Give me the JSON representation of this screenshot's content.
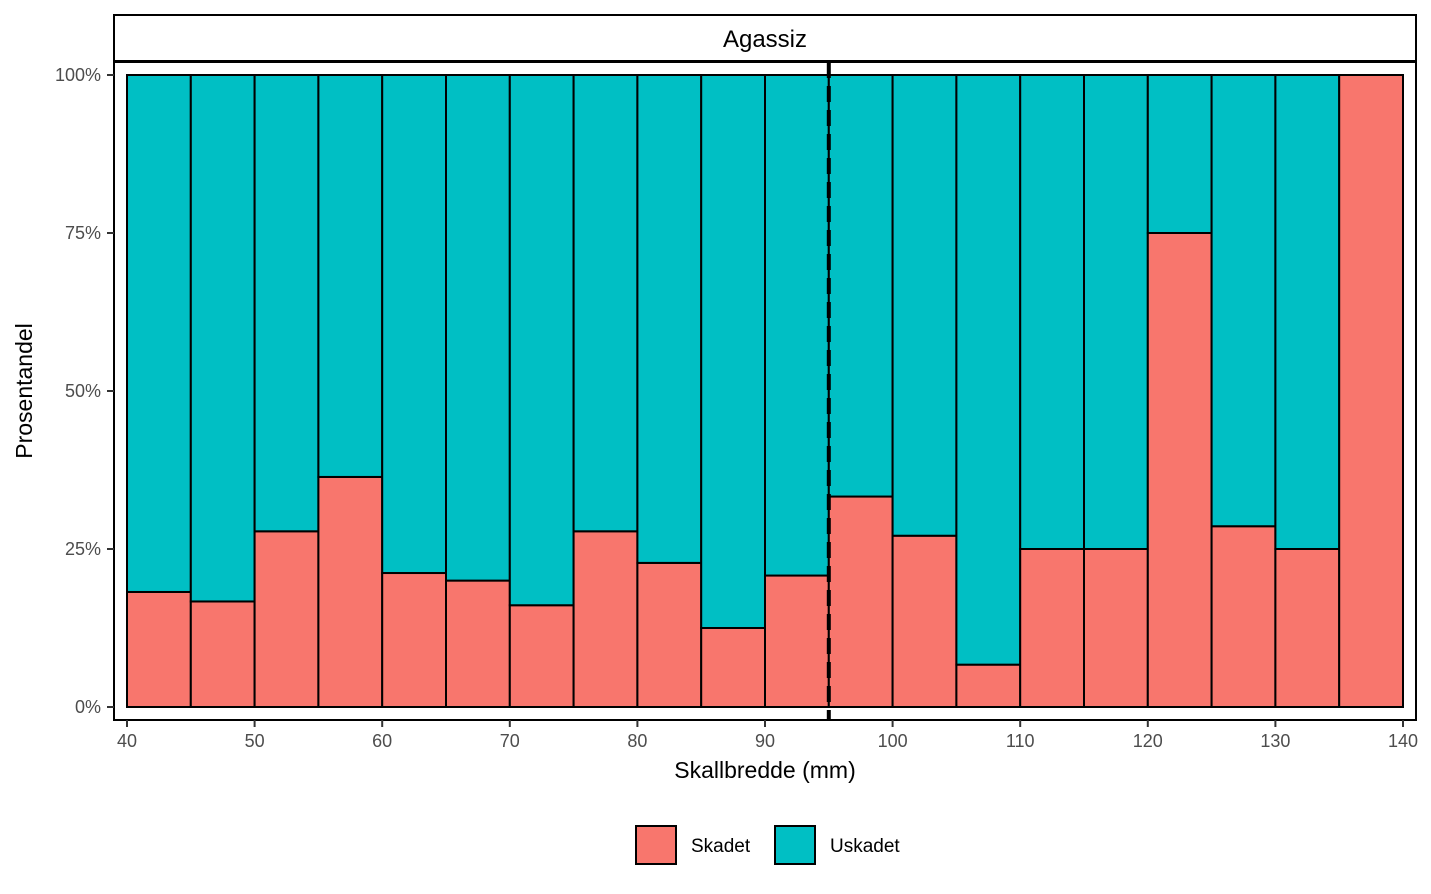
{
  "chart_data": {
    "type": "bar",
    "stacked": "fill",
    "facet_label": "Agassiz",
    "xlabel": "Skallbredde (mm)",
    "ylabel": "Prosentandel",
    "xlim": [
      40,
      140
    ],
    "ylim": [
      0,
      1
    ],
    "x_ticks": [
      40,
      50,
      60,
      70,
      80,
      90,
      100,
      110,
      120,
      130,
      140
    ],
    "y_ticks": [
      0,
      0.25,
      0.5,
      0.75,
      1
    ],
    "y_tick_labels": [
      "0%",
      "25%",
      "50%",
      "75%",
      "100%"
    ],
    "bin_width": 5,
    "bins_start": [
      40,
      45,
      50,
      55,
      60,
      65,
      70,
      75,
      80,
      85,
      90,
      95,
      100,
      105,
      110,
      115,
      120,
      125,
      130,
      135
    ],
    "series": [
      {
        "name": "Skadet",
        "color": "#F8766D",
        "values": [
          0.182,
          0.167,
          0.278,
          0.364,
          0.212,
          0.2,
          0.161,
          0.278,
          0.228,
          0.125,
          0.208,
          0.333,
          0.271,
          0.067,
          0.25,
          0.25,
          0.75,
          0.286,
          0.25,
          1.0
        ]
      },
      {
        "name": "Uskadet",
        "color": "#00BFC4",
        "values": [
          0.818,
          0.833,
          0.722,
          0.636,
          0.788,
          0.8,
          0.839,
          0.722,
          0.772,
          0.875,
          0.792,
          0.667,
          0.729,
          0.933,
          0.75,
          0.75,
          0.25,
          0.714,
          0.75,
          0.0
        ]
      }
    ],
    "reference_line": {
      "x": 95,
      "style": "dashed"
    },
    "legend_position": "bottom",
    "grid": false
  }
}
